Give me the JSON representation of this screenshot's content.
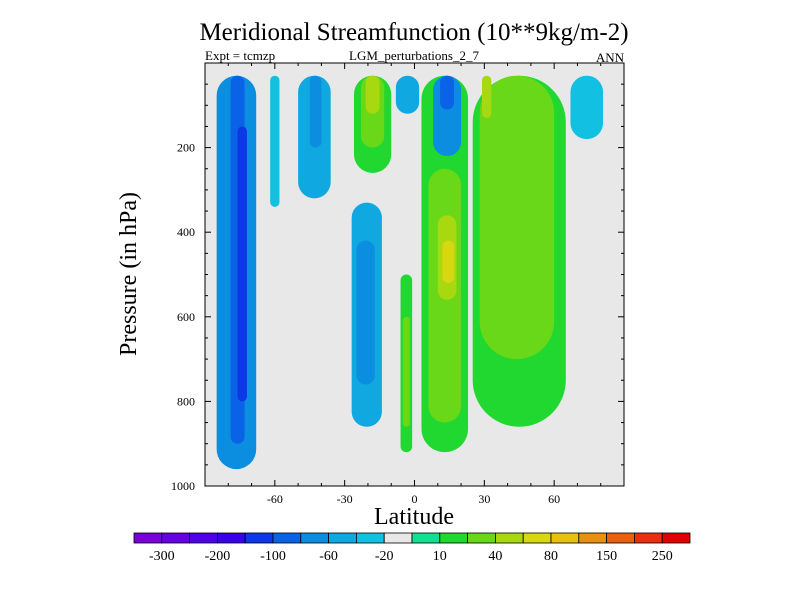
{
  "chart_data": {
    "type": "heatmap",
    "title": "Meridional Streamfunction (10**9kg/m-2)",
    "left_label": "Expt = tcmzp",
    "center_label": "LGM_perturbations_2_7",
    "right_label": "ANN",
    "xlabel": "Latitude",
    "ylabel": "Pressure (in hPa)",
    "xlim": [
      -90,
      90
    ],
    "ylim": [
      1000,
      0
    ],
    "x_ticks": [
      "-60",
      "-30",
      "0",
      "30",
      "60"
    ],
    "x_tick_values": [
      -60,
      -30,
      0,
      30,
      60
    ],
    "y_ticks": [
      "200",
      "400",
      "600",
      "800",
      "1000"
    ],
    "y_tick_values": [
      200,
      400,
      600,
      800,
      1000
    ],
    "colorbar": {
      "colors": [
        "#7a00d8",
        "#6600e0",
        "#5000e6",
        "#3a00e8",
        "#0c38e8",
        "#0a62e6",
        "#0c8ee0",
        "#10a8e0",
        "#12c0e2",
        "#e8e8e8",
        "#10e090",
        "#20d830",
        "#68d818",
        "#a8d810",
        "#d8d810",
        "#e8c010",
        "#e89010",
        "#e86010",
        "#e83010",
        "#e00000"
      ],
      "labels": [
        "-300",
        "-200",
        "-100",
        "-60",
        "-20",
        "10",
        "40",
        "80",
        "150",
        "250"
      ],
      "label_boundaries": [
        1,
        3,
        5,
        7,
        9,
        11,
        13,
        15,
        17,
        19
      ]
    },
    "regions": [
      {
        "level": 6,
        "lat": [
          -85,
          -68
        ],
        "p": [
          30,
          960
        ]
      },
      {
        "level": 5,
        "lat": [
          -79,
          -73
        ],
        "p": [
          30,
          900
        ]
      },
      {
        "level": 4,
        "lat": [
          -76,
          -72
        ],
        "p": [
          150,
          800
        ]
      },
      {
        "level": 8,
        "lat": [
          -62,
          -58
        ],
        "p": [
          30,
          340
        ]
      },
      {
        "level": 7,
        "lat": [
          -50,
          -36
        ],
        "p": [
          30,
          320
        ]
      },
      {
        "level": 6,
        "lat": [
          -45,
          -40
        ],
        "p": [
          30,
          200
        ]
      },
      {
        "level": 11,
        "lat": [
          -26,
          -10
        ],
        "p": [
          30,
          260
        ]
      },
      {
        "level": 12,
        "lat": [
          -23,
          -13
        ],
        "p": [
          30,
          200
        ]
      },
      {
        "level": 13,
        "lat": [
          -21,
          -15
        ],
        "p": [
          30,
          120
        ]
      },
      {
        "level": 7,
        "lat": [
          -8,
          2
        ],
        "p": [
          30,
          120
        ]
      },
      {
        "level": 7,
        "lat": [
          -27,
          -14
        ],
        "p": [
          330,
          860
        ]
      },
      {
        "level": 6,
        "lat": [
          -25,
          -17
        ],
        "p": [
          420,
          760
        ]
      },
      {
        "level": 11,
        "lat": [
          -6,
          -1
        ],
        "p": [
          500,
          920
        ]
      },
      {
        "level": 12,
        "lat": [
          -5,
          -2
        ],
        "p": [
          600,
          860
        ]
      },
      {
        "level": 11,
        "lat": [
          3,
          23
        ],
        "p": [
          30,
          920
        ]
      },
      {
        "level": 12,
        "lat": [
          6,
          20
        ],
        "p": [
          250,
          850
        ]
      },
      {
        "level": 13,
        "lat": [
          10,
          18
        ],
        "p": [
          360,
          560
        ]
      },
      {
        "level": 14,
        "lat": [
          12,
          17
        ],
        "p": [
          420,
          520
        ]
      },
      {
        "level": 6,
        "lat": [
          8,
          20
        ],
        "p": [
          30,
          220
        ]
      },
      {
        "level": 5,
        "lat": [
          11,
          17
        ],
        "p": [
          30,
          110
        ]
      },
      {
        "level": 11,
        "lat": [
          25,
          65
        ],
        "p": [
          30,
          860
        ]
      },
      {
        "level": 12,
        "lat": [
          28,
          60
        ],
        "p": [
          30,
          700
        ]
      },
      {
        "level": 13,
        "lat": [
          29,
          33
        ],
        "p": [
          30,
          130
        ]
      },
      {
        "level": 8,
        "lat": [
          67,
          81
        ],
        "p": [
          30,
          180
        ]
      }
    ]
  }
}
